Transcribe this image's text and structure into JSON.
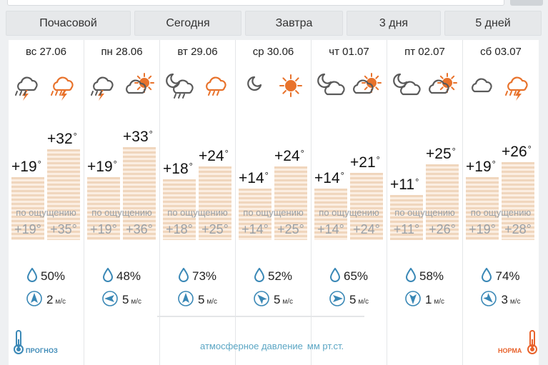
{
  "tabs": [
    {
      "label": "Почасовой"
    },
    {
      "label": "Сегодня"
    },
    {
      "label": "Завтра"
    },
    {
      "label": "3 дня"
    },
    {
      "label": "5 дней"
    }
  ],
  "feel_label": "по ощущению",
  "days": [
    {
      "label": "вс 27.06",
      "night_icon": "night-thunderstorm-icon",
      "day_icon": "thunderstorm-icon",
      "night_temp": "+19",
      "day_temp": "+32",
      "feel_night": "+19°",
      "feel_day": "+35°",
      "humidity": "50%",
      "wind_dir": "N",
      "wind_speed": "2",
      "wind_unit": "м/с"
    },
    {
      "label": "пн 28.06",
      "night_icon": "night-thunderstorm-icon",
      "day_icon": "sun-cloud-icon",
      "night_temp": "+19",
      "day_temp": "+33",
      "feel_night": "+19°",
      "feel_day": "+36°",
      "humidity": "48%",
      "wind_dir": "W",
      "wind_speed": "5",
      "wind_unit": "м/с"
    },
    {
      "label": "вт 29.06",
      "night_icon": "moon-cloud-rain-icon",
      "day_icon": "cloud-rain-icon",
      "night_temp": "+18",
      "day_temp": "+24",
      "feel_night": "+18°",
      "feel_day": "+25°",
      "humidity": "73%",
      "wind_dir": "N",
      "wind_speed": "5",
      "wind_unit": "м/с"
    },
    {
      "label": "ср 30.06",
      "night_icon": "moon-icon",
      "day_icon": "sun-icon",
      "night_temp": "+14",
      "day_temp": "+24",
      "feel_night": "+14°",
      "feel_day": "+25°",
      "humidity": "52%",
      "wind_dir": "NW",
      "wind_speed": "5",
      "wind_unit": "м/с"
    },
    {
      "label": "чт 01.07",
      "night_icon": "moon-cloud-icon",
      "day_icon": "sun-cloud-icon",
      "night_temp": "+14",
      "day_temp": "+21",
      "feel_night": "+14°",
      "feel_day": "+24°",
      "humidity": "65%",
      "wind_dir": "E",
      "wind_speed": "5",
      "wind_unit": "м/с"
    },
    {
      "label": "пт 02.07",
      "night_icon": "moon-cloud-icon",
      "day_icon": "sun-cloud-icon",
      "night_temp": "+11",
      "day_temp": "+25",
      "feel_night": "+11°",
      "feel_day": "+26°",
      "humidity": "58%",
      "wind_dir": "S",
      "wind_speed": "1",
      "wind_unit": "м/с"
    },
    {
      "label": "сб 03.07",
      "night_icon": "cloud-icon",
      "day_icon": "thunderstorm-icon",
      "night_temp": "+19",
      "day_temp": "+26",
      "feel_night": "+19°",
      "feel_day": "+28°",
      "humidity": "74%",
      "wind_dir": "SE",
      "wind_speed": "3",
      "wind_unit": "м/с"
    }
  ],
  "footer": {
    "pressure_label": "атмосферное давление",
    "pressure_unit": "мм рт.ст.",
    "prognoz_label": "ПРОГНОЗ",
    "norma_label": "НОРМА"
  },
  "colors": {
    "bar_stripe": "#f0d6bd",
    "icon_orange": "#e8722b",
    "icon_dark": "#5a5a5a",
    "accent_blue": "#3a88b6",
    "norma_orange": "#e8622b"
  }
}
